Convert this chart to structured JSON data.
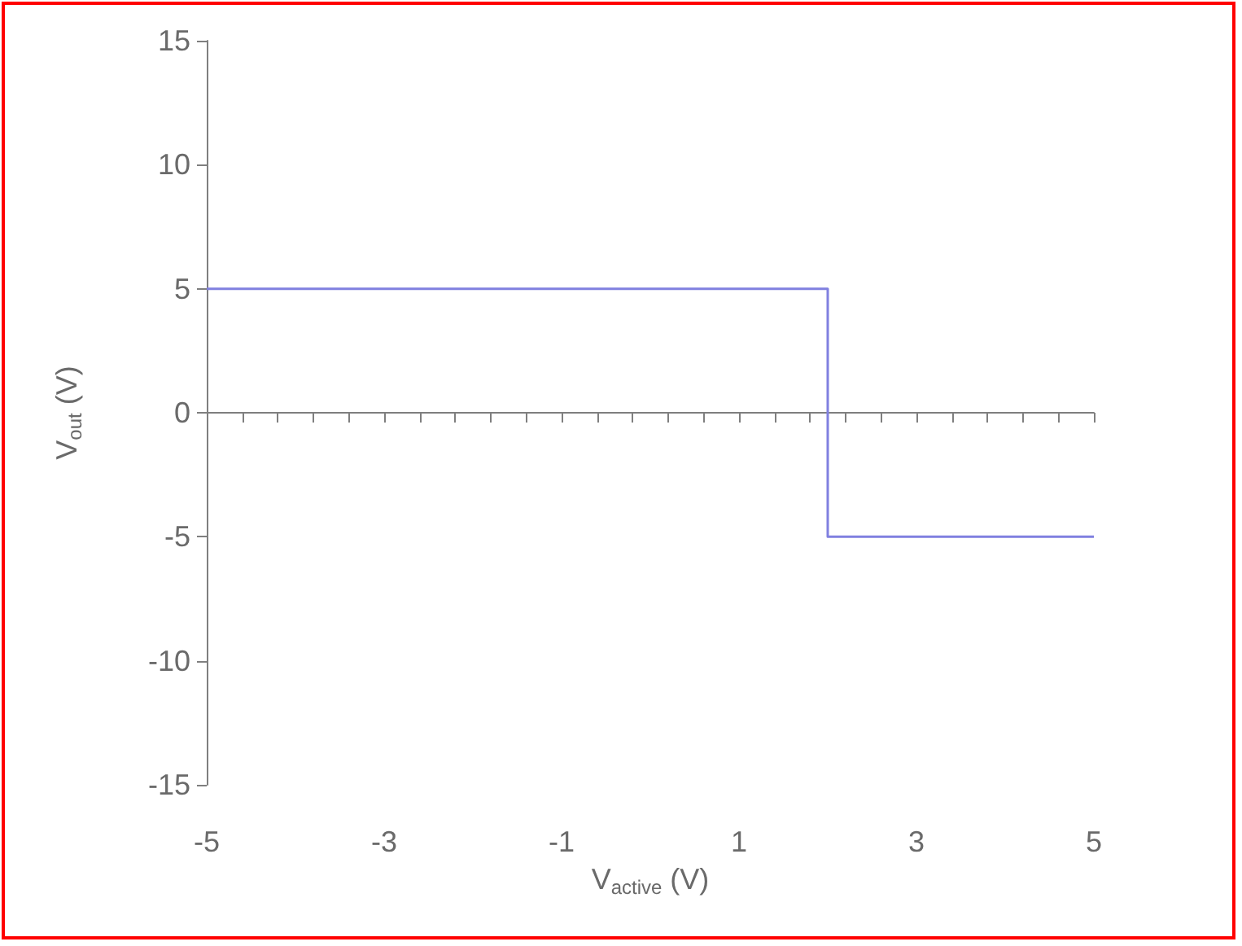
{
  "chart_data": {
    "type": "step",
    "xlabel": "V$_{active}$ (V)",
    "ylabel": "V$_{out}$ (V)",
    "x": [
      -5,
      2,
      5
    ],
    "series": [
      {
        "color": "#8080e0",
        "values": [
          5,
          -5,
          -5
        ]
      }
    ],
    "xlim": [
      -5,
      5
    ],
    "xticks": [
      -5,
      {
        "value": -4.6,
        "label": null
      },
      {
        "value": -4.2,
        "label": null
      },
      {
        "value": -3.8,
        "label": null
      },
      {
        "value": -3.4,
        "label": null
      },
      -3,
      {
        "value": -2.6,
        "label": null
      },
      {
        "value": -2.2,
        "label": null
      },
      {
        "value": -1.8,
        "label": null
      },
      {
        "value": -1.4,
        "label": null
      },
      -1,
      {
        "value": -0.6,
        "label": null
      },
      {
        "value": -0.2,
        "label": null
      },
      {
        "value": 0.2,
        "label": null
      },
      {
        "value": 0.6,
        "label": null
      },
      1,
      {
        "value": 1.4,
        "label": null
      },
      {
        "value": 1.8,
        "label": null
      },
      {
        "value": 2.2,
        "label": null
      },
      {
        "value": 2.6,
        "label": null
      },
      3,
      {
        "value": 3.4,
        "label": null
      },
      {
        "value": 3.8,
        "label": null
      },
      {
        "value": 4.2,
        "label": null
      },
      {
        "value": 4.6,
        "label": null
      },
      5
    ],
    "ylim": [
      -15,
      15
    ],
    "yticks": [
      -15,
      -10,
      -5,
      0,
      5,
      10,
      15
    ],
    "marker": "none",
    "line_style": "solid"
  }
}
